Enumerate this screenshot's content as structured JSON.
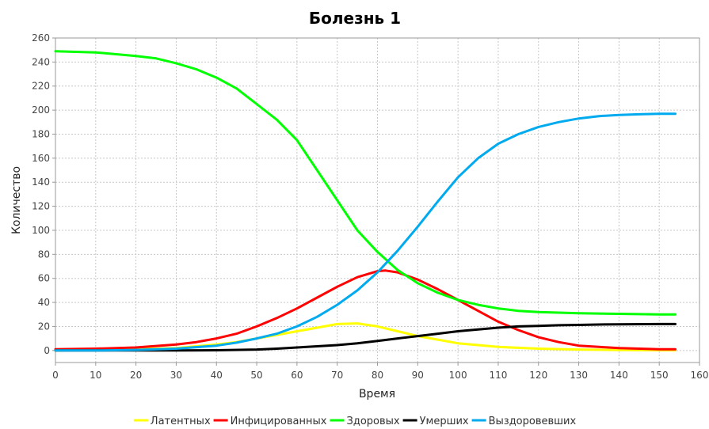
{
  "chart_data": {
    "type": "line",
    "title": "Болезнь 1",
    "xlabel": "Время",
    "ylabel": "Количество",
    "xlim": [
      0,
      160
    ],
    "ylim": [
      -10,
      260
    ],
    "x_ticks": [
      0,
      10,
      20,
      30,
      40,
      50,
      60,
      70,
      80,
      90,
      100,
      110,
      120,
      130,
      140,
      150,
      160
    ],
    "y_ticks": [
      0,
      20,
      40,
      60,
      80,
      100,
      120,
      140,
      160,
      180,
      200,
      220,
      240,
      260
    ],
    "grid": true,
    "legend_position": "bottom",
    "series": [
      {
        "name": "Латентных",
        "color": "#ffff00",
        "x": [
          0,
          10,
          20,
          30,
          40,
          45,
          50,
          55,
          60,
          65,
          70,
          75,
          80,
          85,
          90,
          95,
          100,
          110,
          120,
          130,
          140,
          150,
          154
        ],
        "y": [
          0,
          0.5,
          1,
          2,
          5,
          7,
          10,
          13,
          16,
          19,
          22,
          22.5,
          20,
          16,
          12,
          9,
          6,
          3,
          1.5,
          0.8,
          0.4,
          0.2,
          0.2
        ]
      },
      {
        "name": "Инфицированных",
        "color": "#ff0000",
        "x": [
          0,
          10,
          20,
          30,
          35,
          40,
          45,
          50,
          55,
          60,
          65,
          70,
          75,
          80,
          82,
          85,
          90,
          95,
          100,
          105,
          110,
          115,
          120,
          125,
          130,
          135,
          140,
          150,
          154
        ],
        "y": [
          1,
          1.5,
          2.5,
          5,
          7,
          10,
          14,
          20,
          27,
          35,
          44,
          53,
          61,
          66,
          66.5,
          65,
          59,
          51,
          42,
          33,
          24,
          17,
          11,
          7,
          4,
          3,
          2,
          1,
          1
        ]
      },
      {
        "name": "Здоровых",
        "color": "#00ff00",
        "x": [
          0,
          10,
          20,
          25,
          30,
          35,
          40,
          45,
          50,
          55,
          60,
          65,
          70,
          75,
          80,
          85,
          90,
          95,
          100,
          105,
          110,
          115,
          120,
          130,
          140,
          150,
          154
        ],
        "y": [
          249,
          248,
          245,
          243,
          239,
          234,
          227,
          218,
          205,
          192,
          175,
          150,
          125,
          100,
          82,
          67,
          56,
          48,
          42,
          38,
          35,
          33,
          32,
          31,
          30.5,
          30,
          30
        ]
      },
      {
        "name": "Умерших",
        "color": "#000000",
        "x": [
          0,
          10,
          20,
          30,
          40,
          50,
          55,
          60,
          65,
          70,
          75,
          80,
          85,
          90,
          95,
          100,
          105,
          110,
          115,
          120,
          125,
          130,
          135,
          140,
          150,
          154
        ],
        "y": [
          0,
          0,
          0,
          0,
          0.2,
          0.8,
          1.5,
          2.5,
          3.5,
          4.5,
          6,
          8,
          10,
          12,
          14,
          16,
          17.5,
          19,
          20,
          20.5,
          21,
          21.3,
          21.6,
          21.8,
          22,
          22
        ]
      },
      {
        "name": "Выздоровевших",
        "color": "#00aaee",
        "x": [
          0,
          10,
          20,
          30,
          40,
          45,
          50,
          55,
          60,
          65,
          70,
          75,
          80,
          85,
          90,
          95,
          100,
          105,
          110,
          115,
          120,
          125,
          130,
          135,
          140,
          145,
          150,
          154
        ],
        "y": [
          0,
          0,
          0.5,
          1.5,
          4,
          6.5,
          10,
          14,
          20,
          28,
          38,
          50,
          65,
          83,
          103,
          124,
          144,
          160,
          172,
          180,
          186,
          190,
          193,
          195,
          196,
          196.5,
          197,
          197
        ]
      }
    ]
  }
}
